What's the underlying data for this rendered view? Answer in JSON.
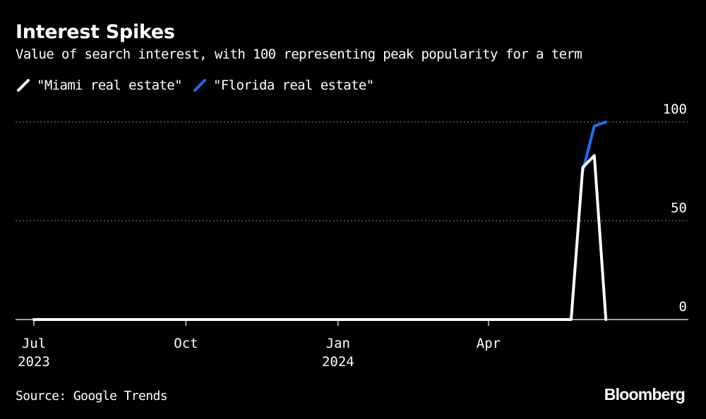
{
  "chart_data": {
    "type": "line",
    "title": "Interest Spikes",
    "subtitle": "Value of search interest, with 100 representing peak popularity for a term",
    "xlabel": "",
    "ylabel": "",
    "ylim": [
      0,
      100
    ],
    "y_ticks": [
      0,
      50,
      100
    ],
    "x_ticks": [
      {
        "label": "Jul",
        "year": "2023",
        "date": "2023-07-01"
      },
      {
        "label": "Oct",
        "year": "",
        "date": "2023-10-01"
      },
      {
        "label": "Jan",
        "year": "2024",
        "date": "2024-01-01"
      },
      {
        "label": "Apr",
        "year": "",
        "date": "2024-04-01"
      }
    ],
    "x_range": [
      "2023-07-01",
      "2024-07-01"
    ],
    "grid": true,
    "legend_position": "top-left",
    "series": [
      {
        "name": "\"Florida real estate\"",
        "color": "#1f6ff2",
        "points": [
          {
            "date": "2024-05-28",
            "value": 75
          },
          {
            "date": "2024-06-04",
            "value": 98
          },
          {
            "date": "2024-06-11",
            "value": 100
          }
        ]
      },
      {
        "name": "\"Miami real estate\"",
        "color": "#ffffff",
        "points": [
          {
            "date": "2023-07-01",
            "value": 0
          },
          {
            "date": "2024-05-21",
            "value": 0
          },
          {
            "date": "2024-05-28",
            "value": 77
          },
          {
            "date": "2024-06-04",
            "value": 83
          },
          {
            "date": "2024-06-11",
            "value": 0
          }
        ]
      }
    ]
  },
  "source": "Source: Google Trends",
  "brand": "Bloomberg"
}
